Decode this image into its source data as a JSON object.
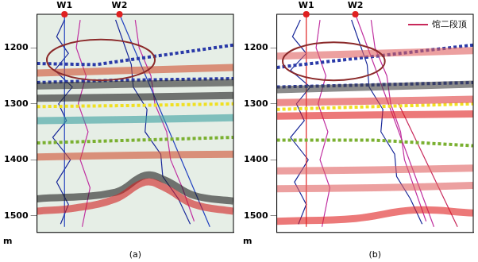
{
  "chart_data": [
    {
      "type": "line",
      "title": "(a)",
      "y_label": "m",
      "xlim": [
        0,
        100
      ],
      "ylim": [
        1140,
        1530
      ],
      "yticks": [
        1200,
        1300,
        1400,
        1500
      ],
      "grid": true,
      "tick_labels": "y",
      "annotations": [
        {
          "text": "W1",
          "x": 14
        },
        {
          "text": "W2",
          "x": 42
        }
      ],
      "ellipse": {
        "x": [
          5,
          60
        ],
        "y": [
          1185,
          1258
        ],
        "color": "#8b2a2a"
      },
      "series": [
        {
          "type": "band",
          "color": "#d02020",
          "x": [
            0,
            20,
            40,
            55,
            65,
            80,
            100
          ],
          "values": [
            1492,
            1486,
            1470,
            1440,
            1450,
            1480,
            1492
          ]
        },
        {
          "type": "band",
          "color": "#202020",
          "x": [
            0,
            40,
            55,
            65,
            80,
            100
          ],
          "values": [
            1470,
            1458,
            1428,
            1436,
            1464,
            1474
          ]
        },
        {
          "type": "band",
          "color": "#202020",
          "x": [
            0,
            50,
            100
          ],
          "values": [
            1290,
            1288,
            1285
          ]
        },
        {
          "type": "band",
          "color": "#303030",
          "x": [
            0,
            50,
            100
          ],
          "values": [
            1268,
            1265,
            1262
          ]
        },
        {
          "type": "band",
          "color": "#3aa0a0",
          "x": [
            0,
            50,
            100
          ],
          "values": [
            1330,
            1328,
            1325
          ]
        },
        {
          "type": "band",
          "color": "#d05030",
          "x": [
            0,
            50,
            100
          ],
          "values": [
            1245,
            1240,
            1235
          ]
        },
        {
          "type": "band",
          "color": "#d05030",
          "x": [
            0,
            50,
            100
          ],
          "values": [
            1395,
            1392,
            1390
          ]
        },
        {
          "type": "line",
          "line_style": "dotted",
          "color": "#2a3aa8",
          "x": [
            0,
            30,
            60,
            100
          ],
          "values": [
            1228,
            1230,
            1215,
            1195
          ]
        },
        {
          "type": "line",
          "line_style": "dotted",
          "color": "#2a3aa8",
          "x": [
            0,
            40,
            100
          ],
          "values": [
            1262,
            1258,
            1255
          ]
        },
        {
          "type": "line",
          "line_style": "dotted",
          "color": "#f0e020",
          "x": [
            0,
            50,
            100
          ],
          "values": [
            1305,
            1303,
            1300
          ]
        },
        {
          "type": "line",
          "line_style": "dotted",
          "color": "#7ab030",
          "x": [
            0,
            50,
            100
          ],
          "values": [
            1370,
            1365,
            1360
          ]
        },
        {
          "type": "line",
          "line_style": "solid",
          "color": "#2040c0",
          "x": [
            14,
            14
          ],
          "values": [
            1140,
            1520
          ]
        },
        {
          "type": "line",
          "line_style": "solid",
          "color": "#2040c0",
          "x": [
            42,
            88
          ],
          "values": [
            1140,
            1520
          ]
        },
        {
          "type": "line",
          "line_style": "solid",
          "color": "#1a2a9a",
          "x": [
            14,
            10,
            16,
            9,
            18,
            11,
            15,
            8,
            17,
            10,
            16,
            12
          ],
          "values": [
            1150,
            1180,
            1210,
            1240,
            1270,
            1300,
            1330,
            1360,
            1400,
            1440,
            1480,
            1515
          ]
        },
        {
          "type": "line",
          "line_style": "solid",
          "color": "#c030a0",
          "x": [
            22,
            20,
            25,
            21,
            26,
            22,
            27,
            23
          ],
          "values": [
            1150,
            1200,
            1250,
            1300,
            1350,
            1400,
            1450,
            1520
          ]
        },
        {
          "type": "line",
          "line_style": "solid",
          "color": "#1a2a9a",
          "x": [
            40,
            44,
            48,
            49,
            56,
            55,
            63,
            64,
            72,
            78
          ],
          "values": [
            1150,
            1190,
            1230,
            1270,
            1310,
            1350,
            1390,
            1430,
            1470,
            1515
          ]
        },
        {
          "type": "line",
          "line_style": "solid",
          "color": "#c030a0",
          "x": [
            50,
            52,
            58,
            60,
            66,
            68,
            74,
            80
          ],
          "values": [
            1150,
            1200,
            1250,
            1300,
            1350,
            1400,
            1450,
            1510
          ]
        }
      ]
    },
    {
      "type": "line",
      "title": "(b)",
      "y_label": "m",
      "xlim": [
        0,
        100
      ],
      "ylim": [
        1140,
        1530
      ],
      "yticks": [
        1200,
        1300,
        1400,
        1500
      ],
      "grid": true,
      "tick_labels": "y",
      "legend": "upper right",
      "annotations": [
        {
          "text": "W1",
          "x": 15
        },
        {
          "text": "W2",
          "x": 40
        }
      ],
      "ellipse": {
        "x": [
          3,
          55
        ],
        "y": [
          1190,
          1258
        ],
        "color": "#8b2a2a"
      },
      "series": [
        {
          "type": "band",
          "color": "#e02020",
          "x": [
            0,
            40,
            70,
            100
          ],
          "values": [
            1510,
            1505,
            1490,
            1495
          ]
        },
        {
          "type": "band",
          "color": "#e02020",
          "x": [
            0,
            50,
            100
          ],
          "values": [
            1322,
            1320,
            1318
          ]
        },
        {
          "type": "band",
          "color": "#e04040",
          "x": [
            0,
            50,
            100
          ],
          "values": [
            1298,
            1295,
            1292
          ]
        },
        {
          "type": "band",
          "color": "#404040",
          "x": [
            0,
            50,
            100
          ],
          "values": [
            1275,
            1270,
            1265
          ]
        },
        {
          "type": "band",
          "color": "#e06060",
          "x": [
            0,
            50,
            100
          ],
          "values": [
            1420,
            1418,
            1415
          ]
        },
        {
          "type": "band",
          "color": "#e06060",
          "x": [
            0,
            50,
            100
          ],
          "values": [
            1452,
            1450,
            1446
          ]
        },
        {
          "type": "band",
          "color": "#e06060",
          "x": [
            0,
            50,
            100
          ],
          "values": [
            1215,
            1210,
            1205
          ]
        },
        {
          "type": "line",
          "line_style": "dotted",
          "color": "#2a3aa8",
          "x": [
            0,
            50,
            100
          ],
          "values": [
            1235,
            1215,
            1195
          ]
        },
        {
          "type": "line",
          "line_style": "dotted",
          "color": "#2a3aa8",
          "x": [
            0,
            50,
            100
          ],
          "values": [
            1270,
            1266,
            1262
          ]
        },
        {
          "type": "line",
          "line_style": "dotted",
          "color": "#f0e020",
          "x": [
            0,
            50,
            100
          ],
          "values": [
            1310,
            1305,
            1300
          ]
        },
        {
          "type": "line",
          "line_style": "dotted",
          "color": "#7ab030",
          "x": [
            0,
            50,
            100
          ],
          "values": [
            1365,
            1365,
            1375
          ]
        },
        {
          "type": "line",
          "line_style": "solid",
          "color": "#e02020",
          "x": [
            15,
            15
          ],
          "values": [
            1140,
            1520
          ]
        },
        {
          "type": "line",
          "line_style": "solid",
          "color": "#c030a0",
          "x": [
            40,
            80
          ],
          "values": [
            1140,
            1520
          ]
        },
        {
          "name": "馆二段顶",
          "type": "line",
          "line_style": "solid",
          "color": "#c8285a",
          "x": [
            62,
            92
          ],
          "values": [
            1300,
            1520
          ]
        },
        {
          "type": "line",
          "line_style": "solid",
          "color": "#1a2a9a",
          "x": [
            12,
            8,
            15,
            7,
            17,
            10,
            14,
            7,
            16,
            9,
            15,
            11
          ],
          "values": [
            1150,
            1180,
            1210,
            1240,
            1270,
            1300,
            1330,
            1360,
            1400,
            1440,
            1480,
            1515
          ]
        },
        {
          "type": "line",
          "line_style": "solid",
          "color": "#c030a0",
          "x": [
            22,
            20,
            25,
            21,
            26,
            22,
            27,
            23
          ],
          "values": [
            1150,
            1200,
            1250,
            1300,
            1350,
            1400,
            1450,
            1520
          ]
        },
        {
          "type": "line",
          "line_style": "solid",
          "color": "#1a2a9a",
          "x": [
            38,
            42,
            46,
            47,
            54,
            53,
            60,
            61,
            68,
            74
          ],
          "values": [
            1150,
            1190,
            1230,
            1270,
            1310,
            1350,
            1390,
            1430,
            1470,
            1515
          ]
        },
        {
          "type": "line",
          "line_style": "solid",
          "color": "#c030a0",
          "x": [
            48,
            50,
            56,
            58,
            63,
            65,
            70,
            76
          ],
          "values": [
            1150,
            1200,
            1250,
            1300,
            1350,
            1400,
            1450,
            1510
          ]
        }
      ]
    }
  ]
}
